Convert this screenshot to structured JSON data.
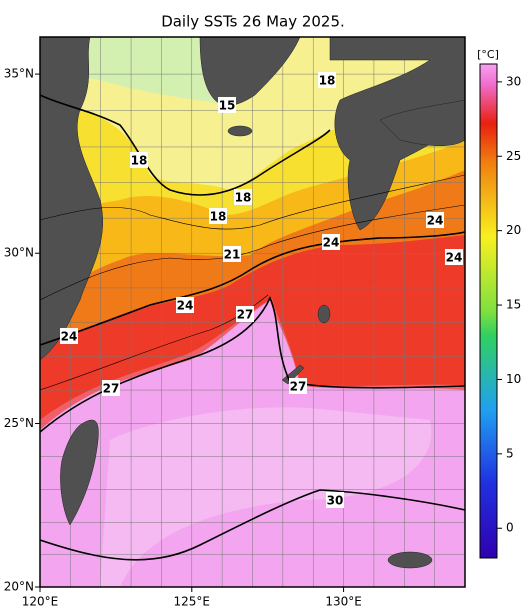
{
  "title": "Daily SSTs 26 May 2025.",
  "map": {
    "lon_lim": [
      120,
      134
    ],
    "lat_lim": [
      20,
      36
    ],
    "lon_ticks": [
      {
        "value": 120,
        "label": "120°E"
      },
      {
        "value": 125,
        "label": "125°E"
      },
      {
        "value": 130,
        "label": "130°E"
      }
    ],
    "lat_ticks": [
      {
        "value": 20,
        "label": "20°N"
      },
      {
        "value": 25,
        "label": "25°N"
      },
      {
        "value": 30,
        "label": "30°N"
      },
      {
        "value": 35,
        "label": "35°N"
      }
    ],
    "contour_labels": [
      "18",
      "15",
      "18",
      "18",
      "18",
      "21",
      "24",
      "24",
      "24",
      "24",
      "27",
      "24",
      "27",
      "27",
      "30"
    ]
  },
  "colorbar": {
    "unit": "[°C]",
    "lim": [
      -2,
      31.2
    ],
    "ticks": [
      0,
      5,
      10,
      15,
      20,
      25,
      30
    ]
  }
}
